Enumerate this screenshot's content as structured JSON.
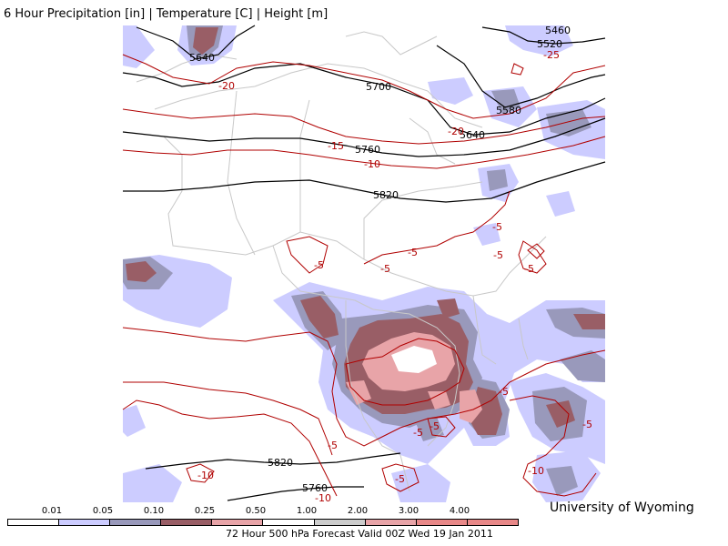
{
  "header": {
    "title": "6 Hour Precipitation [in] | Temperature [C] | Height [m]"
  },
  "footer": {
    "credit": "University of Wyoming",
    "caption": "72 Hour 500 hPa Forecast Valid 00Z Wed 19 Jan 2011"
  },
  "legend": {
    "ticks": [
      "0.01",
      "0.05",
      "0.10",
      "0.25",
      "0.50",
      "1.00",
      "2.00",
      "3.00",
      "4.00"
    ],
    "colors": [
      "#ffffff",
      "#ccccff",
      "#9999bb",
      "#995e66",
      "#e8a4a8",
      "#ffffff",
      "#cccccc",
      "#e8a4a8",
      "#e88888",
      "#e88888"
    ]
  },
  "map": {
    "height_contour_color": "#000000",
    "temperature_contour_color": "#b00000",
    "border_color": "#c8c8c8",
    "height_labels": [
      "5460",
      "5520",
      "5640",
      "5700",
      "5580",
      "5640",
      "5760",
      "5820",
      "5820",
      "5760"
    ],
    "temperature_labels": [
      "-25",
      "-20",
      "-20",
      "-15",
      "-10",
      "-5",
      "-5",
      "-5",
      "-5",
      "-5",
      "-5",
      "-5",
      "-5",
      "-5",
      "-5",
      "-5",
      "-10",
      "-10",
      "-10",
      "-5"
    ]
  }
}
